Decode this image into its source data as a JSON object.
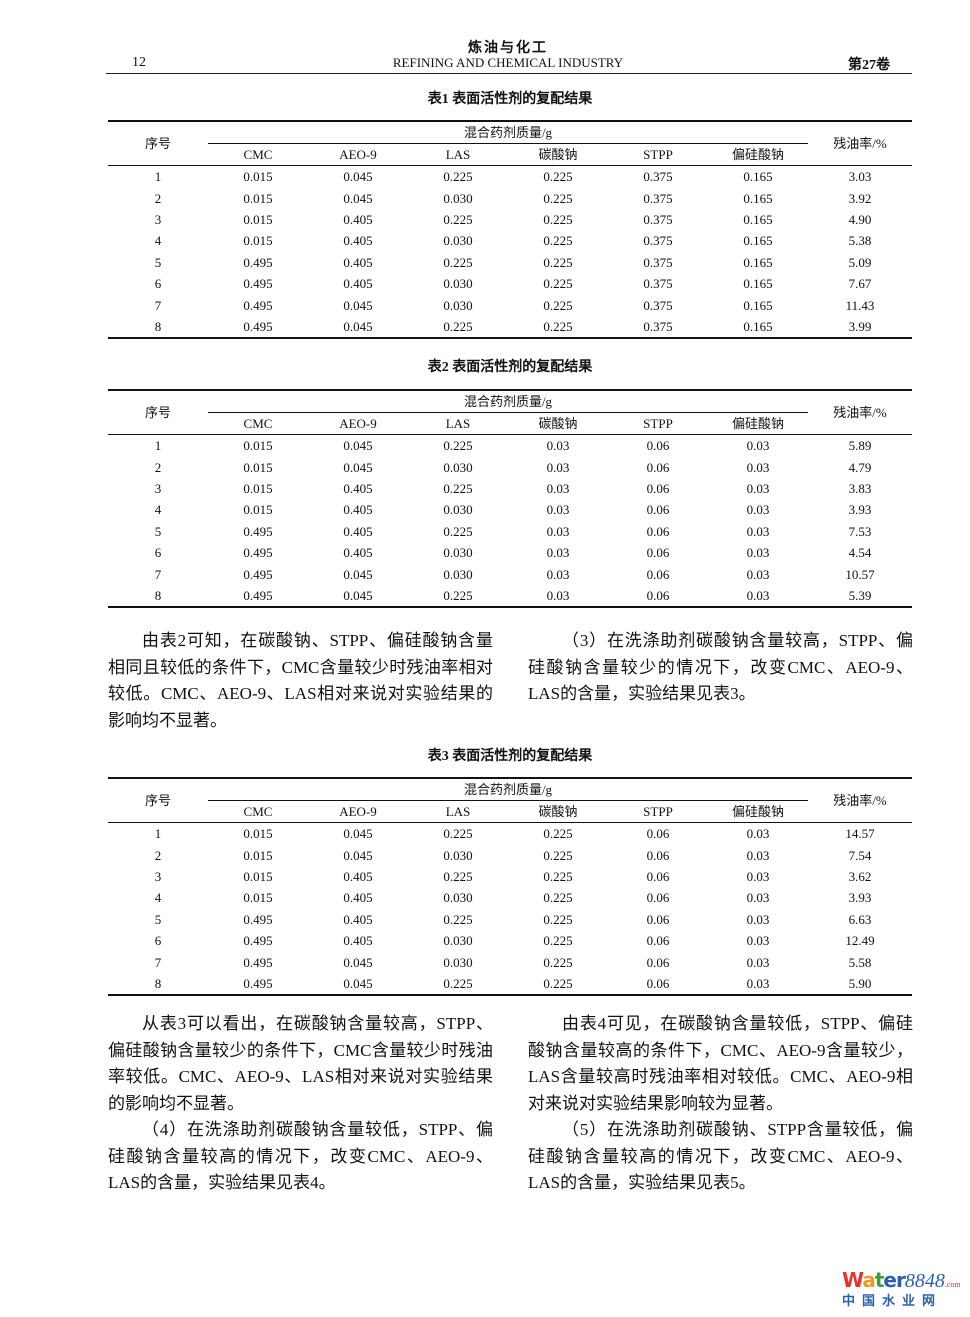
{
  "header": {
    "journal_cn": "炼油与化工",
    "journal_en": "REFINING AND CHEMICAL INDUSTRY",
    "page_number": "12",
    "volume": "第27卷"
  },
  "columns": {
    "serial": "序号",
    "group": "混合药剂质量/g",
    "components": [
      "CMC",
      "AEO-9",
      "LAS",
      "碳酸钠",
      "STPP",
      "偏硅酸钠"
    ],
    "residual": "残油率/%"
  },
  "tables": [
    {
      "caption": "表1  表面活性剂的复配结果",
      "rows": [
        [
          "1",
          "0.015",
          "0.045",
          "0.225",
          "0.225",
          "0.375",
          "0.165",
          "3.03"
        ],
        [
          "2",
          "0.015",
          "0.045",
          "0.030",
          "0.225",
          "0.375",
          "0.165",
          "3.92"
        ],
        [
          "3",
          "0.015",
          "0.405",
          "0.225",
          "0.225",
          "0.375",
          "0.165",
          "4.90"
        ],
        [
          "4",
          "0.015",
          "0.405",
          "0.030",
          "0.225",
          "0.375",
          "0.165",
          "5.38"
        ],
        [
          "5",
          "0.495",
          "0.405",
          "0.225",
          "0.225",
          "0.375",
          "0.165",
          "5.09"
        ],
        [
          "6",
          "0.495",
          "0.405",
          "0.030",
          "0.225",
          "0.375",
          "0.165",
          "7.67"
        ],
        [
          "7",
          "0.495",
          "0.045",
          "0.030",
          "0.225",
          "0.375",
          "0.165",
          "11.43"
        ],
        [
          "8",
          "0.495",
          "0.045",
          "0.225",
          "0.225",
          "0.375",
          "0.165",
          "3.99"
        ]
      ]
    },
    {
      "caption": "表2  表面活性剂的复配结果",
      "rows": [
        [
          "1",
          "0.015",
          "0.045",
          "0.225",
          "0.03",
          "0.06",
          "0.03",
          "5.89"
        ],
        [
          "2",
          "0.015",
          "0.045",
          "0.030",
          "0.03",
          "0.06",
          "0.03",
          "4.79"
        ],
        [
          "3",
          "0.015",
          "0.405",
          "0.225",
          "0.03",
          "0.06",
          "0.03",
          "3.83"
        ],
        [
          "4",
          "0.015",
          "0.405",
          "0.030",
          "0.03",
          "0.06",
          "0.03",
          "3.93"
        ],
        [
          "5",
          "0.495",
          "0.405",
          "0.225",
          "0.03",
          "0.06",
          "0.03",
          "7.53"
        ],
        [
          "6",
          "0.495",
          "0.405",
          "0.030",
          "0.03",
          "0.06",
          "0.03",
          "4.54"
        ],
        [
          "7",
          "0.495",
          "0.045",
          "0.030",
          "0.03",
          "0.06",
          "0.03",
          "10.57"
        ],
        [
          "8",
          "0.495",
          "0.045",
          "0.225",
          "0.03",
          "0.06",
          "0.03",
          "5.39"
        ]
      ]
    },
    {
      "caption": "表3  表面活性剂的复配结果",
      "rows": [
        [
          "1",
          "0.015",
          "0.045",
          "0.225",
          "0.225",
          "0.06",
          "0.03",
          "14.57"
        ],
        [
          "2",
          "0.015",
          "0.045",
          "0.030",
          "0.225",
          "0.06",
          "0.03",
          "7.54"
        ],
        [
          "3",
          "0.015",
          "0.405",
          "0.225",
          "0.225",
          "0.06",
          "0.03",
          "3.62"
        ],
        [
          "4",
          "0.015",
          "0.405",
          "0.030",
          "0.225",
          "0.06",
          "0.03",
          "3.93"
        ],
        [
          "5",
          "0.495",
          "0.405",
          "0.225",
          "0.225",
          "0.06",
          "0.03",
          "6.63"
        ],
        [
          "6",
          "0.495",
          "0.405",
          "0.030",
          "0.225",
          "0.06",
          "0.03",
          "12.49"
        ],
        [
          "7",
          "0.495",
          "0.045",
          "0.030",
          "0.225",
          "0.06",
          "0.03",
          "5.58"
        ],
        [
          "8",
          "0.495",
          "0.045",
          "0.225",
          "0.225",
          "0.06",
          "0.03",
          "5.90"
        ]
      ]
    }
  ],
  "text": {
    "p1_left": "由表2可知，在碳酸钠、STPP、偏硅酸钠含量相同且较低的条件下，CMC含量较少时残油率相对较低。CMC、AEO-9、LAS相对来说对实验结果的影响均不显著。",
    "p1_right": "（3）在洗涤助剂碳酸钠含量较高，STPP、偏硅酸钠含量较少的情况下，改变CMC、AEO-9、LAS的含量，实验结果见表3。",
    "p2_left_a": "从表3可以看出，在碳酸钠含量较高，STPP、偏硅酸钠含量较少的条件下，CMC含量较少时残油率较低。CMC、AEO-9、LAS相对来说对实验结果的影响均不显著。",
    "p2_left_b": "（4）在洗涤助剂碳酸钠含量较低，STPP、偏硅酸钠含量较高的情况下，改变CMC、AEO-9、LAS的含量，实验结果见表4。",
    "p2_right_a": "由表4可见，在碳酸钠含量较低，STPP、偏硅酸钠含量较高的条件下，CMC、AEO-9含量较少，LAS含量较高时残油率相对较低。CMC、AEO-9相对来说对实验结果影响较为显著。",
    "p2_right_b": "（5）在洗涤助剂碳酸钠、STPP含量较低，偏硅酸钠含量较高的情况下，改变CMC、AEO-9、LAS的含量，实验结果见表5。"
  },
  "watermark": {
    "logo_word": "Water",
    "logo_num": "8848",
    "logo_tld": ".com",
    "logo_cn": "中国水业网",
    "colors": [
      "#e8322b",
      "#f39a1e",
      "#3aa13a",
      "#2a5fb0"
    ]
  }
}
